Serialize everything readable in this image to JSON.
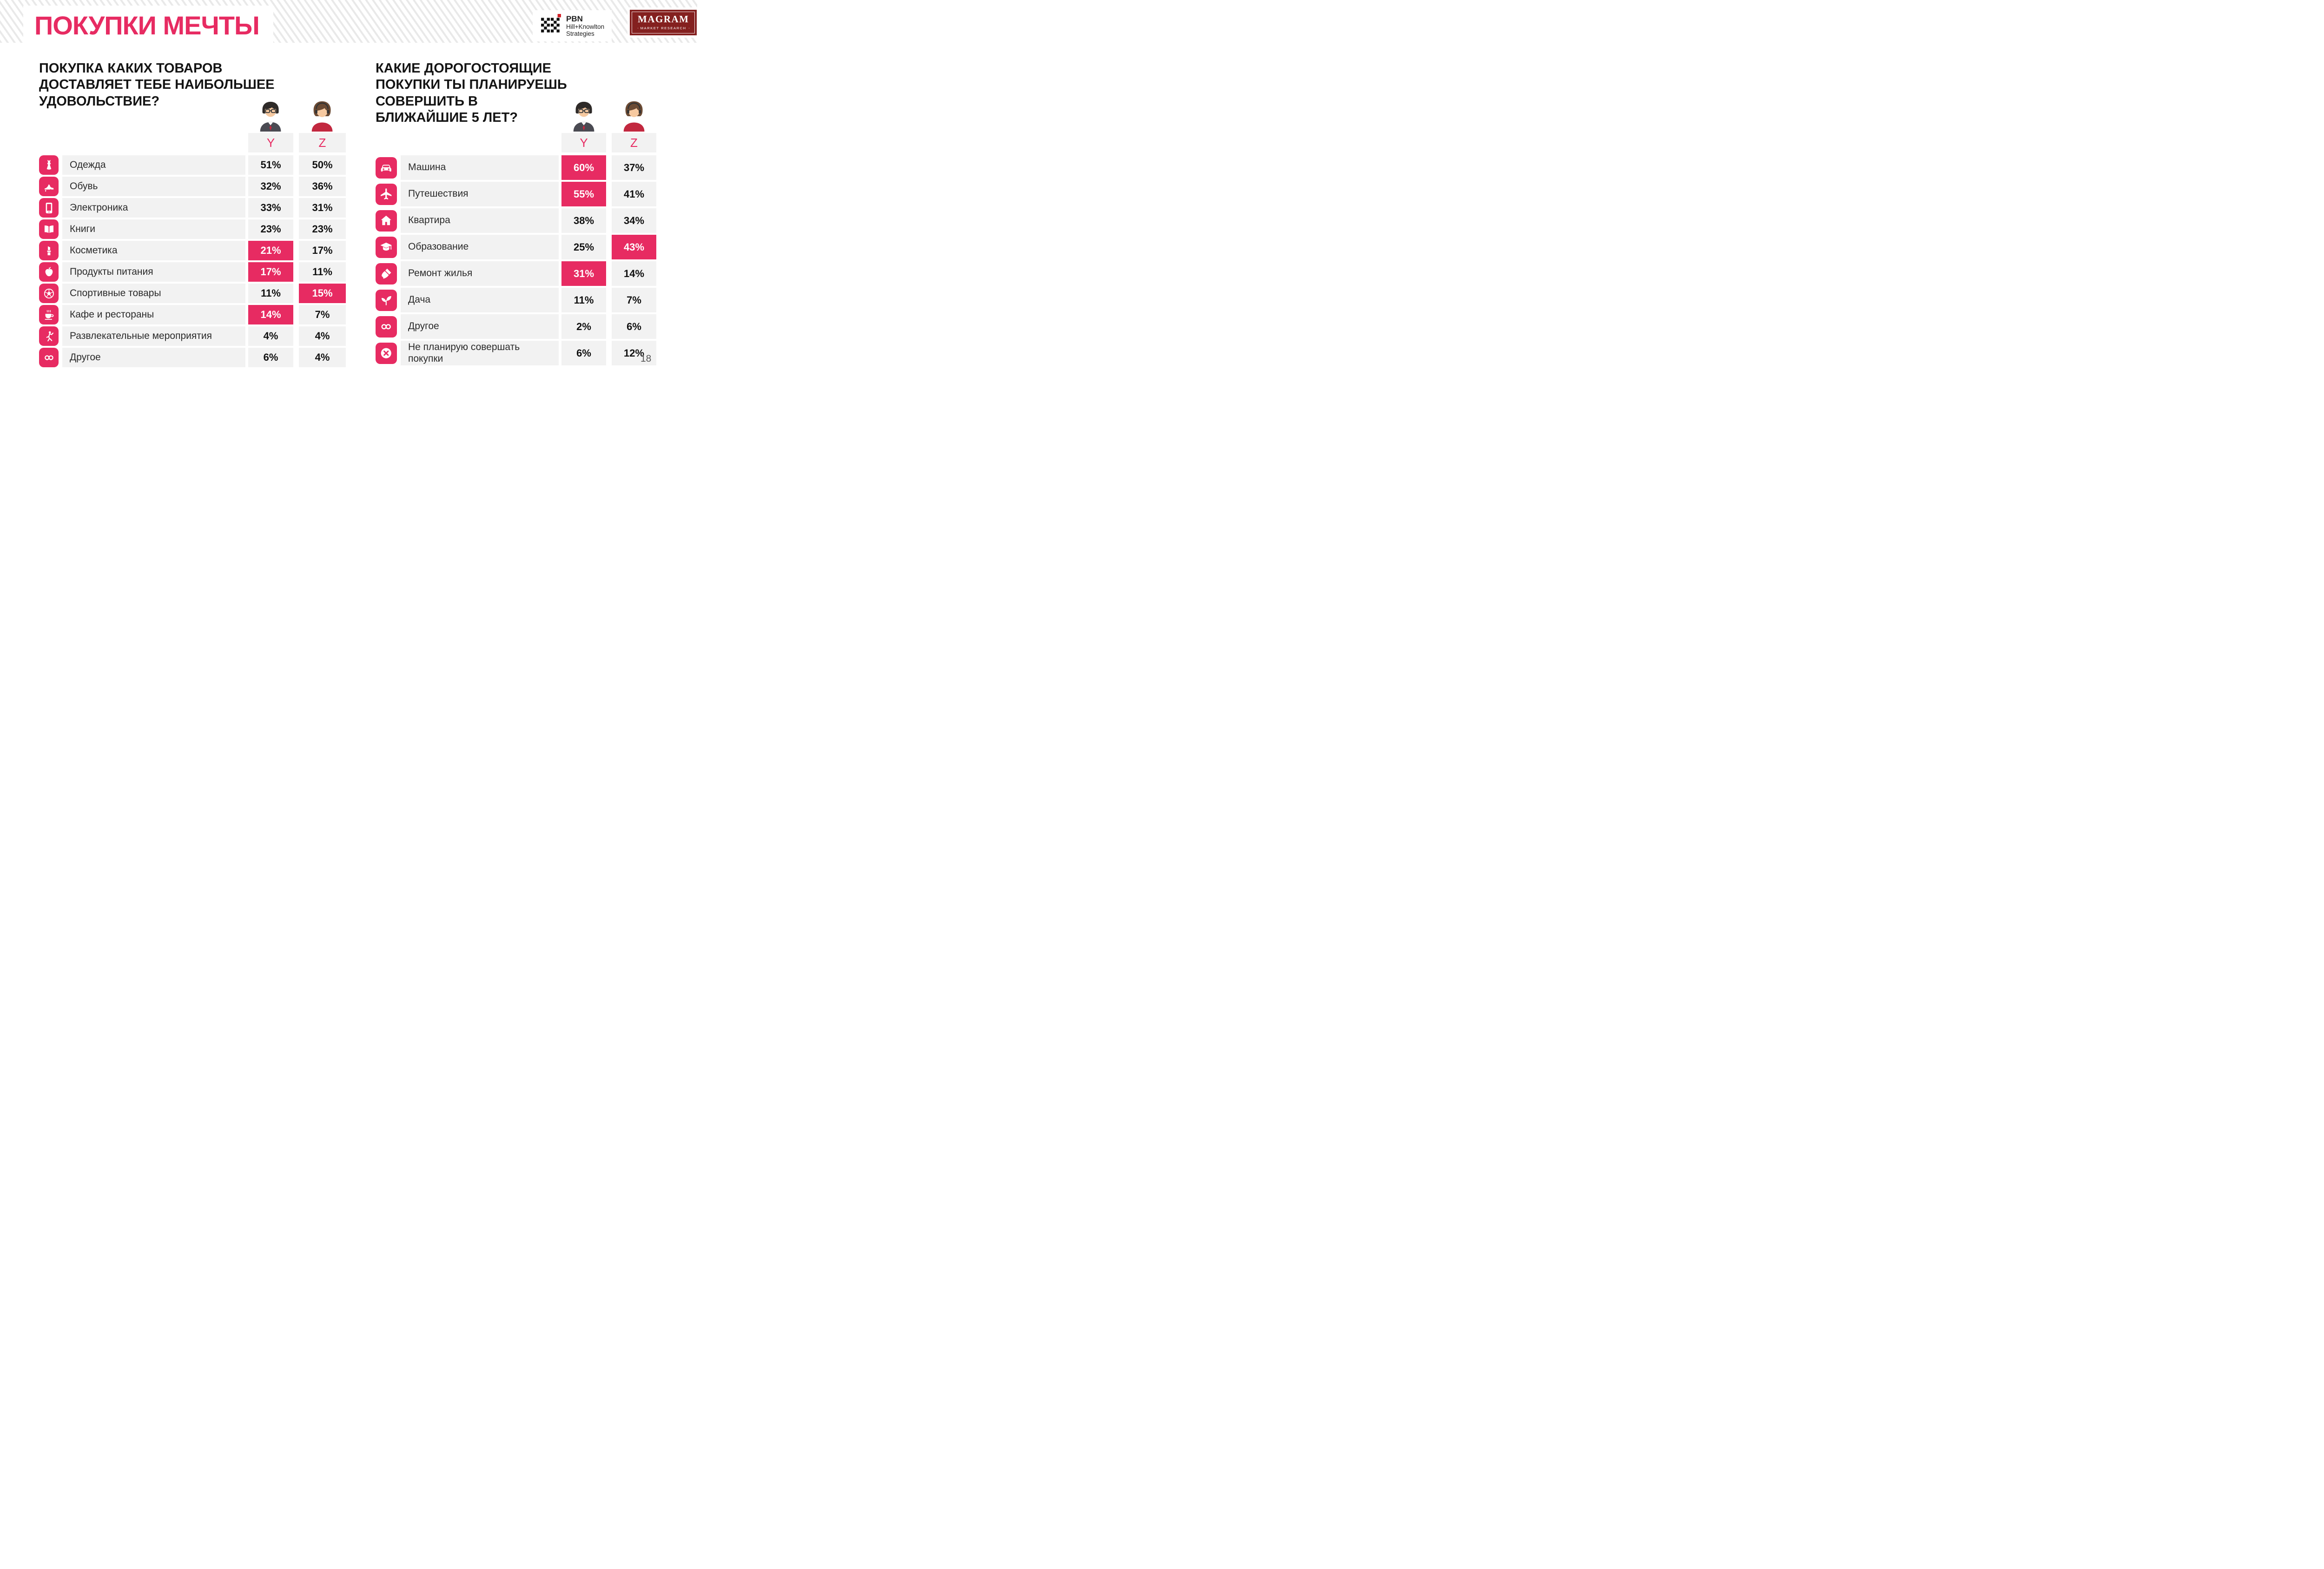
{
  "page": {
    "title": "ПОКУПКИ МЕЧТЫ",
    "page_number": "18"
  },
  "logos": {
    "pbn": {
      "line1": "PBN",
      "line2": "Hill+Knowlton",
      "line3": "Strategies"
    },
    "magram": {
      "title": "MAGRAM",
      "subtitle": "MARKET RESEARCH"
    }
  },
  "colors": {
    "accent": "#E72B62",
    "row_bg": "#F2F2F2",
    "magram_red": "#84201F",
    "text": "#1F1F1F"
  },
  "panels": [
    {
      "question_lines": [
        "ПОКУПКА КАКИХ ТОВАРОВ",
        "ДОСТАВЛЯЕТ ТЕБЕ НАИБОЛЬШЕЕ",
        "УДОВОЛЬСТВИЕ?"
      ]
    },
    {
      "question_lines": [
        "КАКИЕ ДОРОГОСТОЯЩИЕ",
        "ПОКУПКИ ТЫ ПЛАНИРУЕШЬ",
        "СОВЕРШИТЬ В",
        "БЛИЖАЙШИЕ 5 ЛЕТ?"
      ]
    }
  ],
  "chart_data": [
    {
      "type": "table",
      "title": "ПОКУПКА КАКИХ ТОВАРОВ ДОСТАВЛЯЕТ ТЕБЕ НАИБОЛЬШЕЕ УДОВОЛЬСТВИЕ?",
      "columns": [
        "Y",
        "Z"
      ],
      "unit": "%",
      "categories": [
        "Одежда",
        "Обувь",
        "Электроника",
        "Книги",
        "Косметика",
        "Продукты питания",
        "Спортивные товары",
        "Кафе и рестораны",
        "Развлекательные мероприятия",
        "Другое"
      ],
      "icons": [
        "dress-icon",
        "shoe-icon",
        "smartphone-icon",
        "book-icon",
        "lipstick-icon",
        "apple-icon",
        "soccer-ball-icon",
        "coffee-icon",
        "dancer-icon",
        "infinity-icon"
      ],
      "series": [
        {
          "name": "Y",
          "values": [
            51,
            32,
            33,
            23,
            21,
            17,
            11,
            14,
            4,
            6
          ],
          "highlighted": [
            false,
            false,
            false,
            false,
            true,
            true,
            false,
            true,
            false,
            false
          ]
        },
        {
          "name": "Z",
          "values": [
            50,
            36,
            31,
            23,
            17,
            11,
            15,
            7,
            4,
            4
          ],
          "highlighted": [
            false,
            false,
            false,
            false,
            false,
            false,
            true,
            false,
            false,
            false
          ]
        }
      ]
    },
    {
      "type": "table",
      "title": "КАКИЕ ДОРОГОСТОЯЩИЕ ПОКУПКИ ТЫ ПЛАНИРУЕШЬ СОВЕРШИТЬ В БЛИЖАЙШИЕ 5 ЛЕТ?",
      "columns": [
        "Y",
        "Z"
      ],
      "unit": "%",
      "categories": [
        "Машина",
        "Путешествия",
        "Квартира",
        "Образование",
        "Ремонт жилья",
        "Дача",
        "Другое",
        "Не планирую совершать покупки"
      ],
      "icons": [
        "car-icon",
        "plane-icon",
        "house-icon",
        "graduation-cap-icon",
        "paint-brush-icon",
        "sprout-icon",
        "infinity-icon",
        "cancel-icon"
      ],
      "series": [
        {
          "name": "Y",
          "values": [
            60,
            55,
            38,
            25,
            31,
            11,
            2,
            6
          ],
          "highlighted": [
            true,
            true,
            false,
            false,
            true,
            false,
            false,
            false
          ]
        },
        {
          "name": "Z",
          "values": [
            37,
            41,
            34,
            43,
            14,
            7,
            6,
            12
          ],
          "highlighted": [
            false,
            false,
            false,
            true,
            false,
            false,
            false,
            false
          ]
        }
      ]
    }
  ]
}
